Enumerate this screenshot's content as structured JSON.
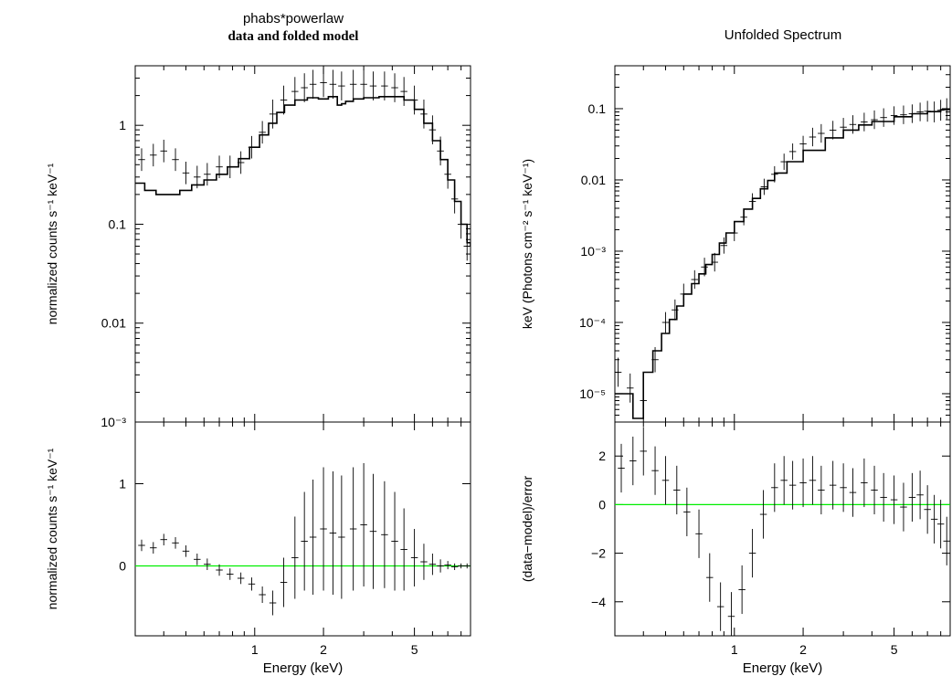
{
  "left_panel": {
    "title_line1": "phabs*powerlaw",
    "title_line2": "data and folded model"
  },
  "right_panel": {
    "title": "Unfolded Spectrum"
  },
  "colors": {
    "data": "#000000",
    "model": "#000000",
    "zero_line": "#00ee00",
    "frame": "#000000",
    "background": "#ffffff"
  },
  "chart_data": [
    {
      "id": "left-top",
      "type": "scatter",
      "title": "phabs*powerlaw",
      "subtitle": "data and folded model",
      "xlabel": "",
      "ylabel": "normalized counts s⁻¹ keV⁻¹",
      "xscale": "log",
      "yscale": "log",
      "xlim": [
        0.3,
        8.8
      ],
      "ylim": [
        0.001,
        4.0
      ],
      "xticks": [
        {
          "value": 1,
          "label": "1"
        },
        {
          "value": 2,
          "label": "2"
        },
        {
          "value": 5,
          "label": "5"
        }
      ],
      "yticks": [
        {
          "value": 0.001,
          "label": "10⁻³"
        },
        {
          "value": 0.01,
          "label": "0.01"
        },
        {
          "value": 0.1,
          "label": "0.1"
        },
        {
          "value": 1,
          "label": "1"
        }
      ],
      "series": [
        {
          "kind": "data_points",
          "x": [
            0.32,
            0.36,
            0.4,
            0.45,
            0.5,
            0.56,
            0.62,
            0.7,
            0.78,
            0.87,
            0.97,
            1.08,
            1.2,
            1.34,
            1.5,
            1.65,
            1.8,
            2.0,
            2.2,
            2.4,
            2.7,
            3.0,
            3.3,
            3.7,
            4.1,
            4.5,
            5.0,
            5.5,
            6.0,
            6.5,
            7.0,
            7.5,
            8.0,
            8.5
          ],
          "y": [
            0.45,
            0.5,
            0.55,
            0.45,
            0.33,
            0.3,
            0.32,
            0.38,
            0.38,
            0.42,
            0.6,
            0.85,
            1.3,
            1.8,
            2.2,
            2.4,
            2.6,
            2.7,
            2.6,
            2.5,
            2.6,
            2.6,
            2.5,
            2.5,
            2.4,
            2.2,
            1.8,
            1.3,
            0.9,
            0.55,
            0.32,
            0.18,
            0.1,
            0.06
          ],
          "yerr_factor": [
            1.3,
            1.3,
            1.3,
            1.3,
            1.3,
            1.3,
            1.3,
            1.3,
            1.3,
            1.3,
            1.3,
            1.3,
            1.4,
            1.4,
            1.4,
            1.4,
            1.4,
            1.4,
            1.4,
            1.4,
            1.4,
            1.4,
            1.4,
            1.4,
            1.4,
            1.4,
            1.4,
            1.4,
            1.4,
            1.4,
            1.4,
            1.4,
            1.4,
            1.4
          ]
        },
        {
          "kind": "model_step",
          "x": [
            0.3,
            0.33,
            0.37,
            0.42,
            0.47,
            0.53,
            0.6,
            0.68,
            0.76,
            0.85,
            0.95,
            1.05,
            1.15,
            1.25,
            1.35,
            1.5,
            1.7,
            1.9,
            2.1,
            2.3,
            2.4,
            2.5,
            2.7,
            3.0,
            3.5,
            4.0,
            4.5,
            5.0,
            5.5,
            6.0,
            6.5,
            7.0,
            7.5,
            8.0,
            8.5,
            8.8
          ],
          "y": [
            0.26,
            0.22,
            0.2,
            0.2,
            0.22,
            0.25,
            0.28,
            0.32,
            0.38,
            0.46,
            0.6,
            0.8,
            1.05,
            1.35,
            1.6,
            1.8,
            1.9,
            1.85,
            1.95,
            1.6,
            1.65,
            1.75,
            1.85,
            1.9,
            1.95,
            1.95,
            1.8,
            1.45,
            1.05,
            0.7,
            0.45,
            0.28,
            0.17,
            0.1,
            0.065,
            0.06
          ]
        }
      ]
    },
    {
      "id": "left-bottom",
      "type": "scatter",
      "xlabel": "Energy (keV)",
      "ylabel": "normalized counts s⁻¹ keV⁻¹",
      "xscale": "log",
      "yscale": "linear",
      "xlim": [
        0.3,
        8.8
      ],
      "ylim": [
        -0.85,
        1.75
      ],
      "xticks": [
        {
          "value": 1,
          "label": "1"
        },
        {
          "value": 2,
          "label": "2"
        },
        {
          "value": 5,
          "label": "5"
        }
      ],
      "yticks": [
        {
          "value": 0,
          "label": "0"
        },
        {
          "value": 1,
          "label": "1"
        }
      ],
      "zero_line": 0,
      "series": [
        {
          "kind": "residual_points",
          "x": [
            0.32,
            0.36,
            0.4,
            0.45,
            0.5,
            0.56,
            0.62,
            0.7,
            0.78,
            0.87,
            0.97,
            1.08,
            1.2,
            1.34,
            1.5,
            1.65,
            1.8,
            2.0,
            2.2,
            2.4,
            2.7,
            3.0,
            3.3,
            3.7,
            4.1,
            4.5,
            5.0,
            5.5,
            6.0,
            6.5,
            7.0,
            7.5,
            8.0,
            8.5
          ],
          "y": [
            0.25,
            0.22,
            0.32,
            0.28,
            0.18,
            0.08,
            0.02,
            -0.05,
            -0.1,
            -0.15,
            -0.22,
            -0.35,
            -0.45,
            -0.2,
            0.1,
            0.3,
            0.35,
            0.45,
            0.4,
            0.35,
            0.45,
            0.5,
            0.42,
            0.38,
            0.3,
            0.2,
            0.1,
            0.05,
            0.02,
            0.0,
            0.01,
            -0.01,
            0.0,
            0.0
          ],
          "yerr": [
            0.07,
            0.07,
            0.07,
            0.07,
            0.07,
            0.07,
            0.07,
            0.07,
            0.07,
            0.07,
            0.08,
            0.1,
            0.15,
            0.3,
            0.5,
            0.6,
            0.7,
            0.75,
            0.75,
            0.75,
            0.75,
            0.75,
            0.7,
            0.65,
            0.6,
            0.5,
            0.35,
            0.22,
            0.13,
            0.08,
            0.05,
            0.04,
            0.03,
            0.03
          ]
        }
      ]
    },
    {
      "id": "right-top",
      "type": "scatter",
      "title": "Unfolded Spectrum",
      "xlabel": "",
      "ylabel": "keV (Photons cm⁻² s⁻¹ keV⁻¹)",
      "xscale": "log",
      "yscale": "log",
      "xlim": [
        0.3,
        8.8
      ],
      "ylim": [
        4e-06,
        0.4
      ],
      "xticks": [
        {
          "value": 1,
          "label": "1"
        },
        {
          "value": 2,
          "label": "2"
        },
        {
          "value": 5,
          "label": "5"
        }
      ],
      "yticks": [
        {
          "value": 1e-05,
          "label": "10⁻⁵"
        },
        {
          "value": 0.0001,
          "label": "10⁻⁴"
        },
        {
          "value": 0.001,
          "label": "10⁻³"
        },
        {
          "value": 0.01,
          "label": "0.01"
        },
        {
          "value": 0.1,
          "label": "0.1"
        }
      ],
      "series": [
        {
          "kind": "data_points",
          "x": [
            0.31,
            0.35,
            0.4,
            0.45,
            0.5,
            0.55,
            0.6,
            0.67,
            0.74,
            0.82,
            0.9,
            1.0,
            1.1,
            1.2,
            1.35,
            1.5,
            1.65,
            1.8,
            2.0,
            2.2,
            2.4,
            2.7,
            3.0,
            3.3,
            3.7,
            4.1,
            4.5,
            5.0,
            5.5,
            6.0,
            6.5,
            7.0,
            7.5,
            8.0,
            8.5
          ],
          "y": [
            2e-05,
            1.2e-05,
            8e-06,
            3e-05,
            0.0001,
            0.00015,
            0.00025,
            0.0004,
            0.0006,
            0.0007,
            0.0012,
            0.0018,
            0.003,
            0.005,
            0.008,
            0.012,
            0.018,
            0.025,
            0.032,
            0.04,
            0.045,
            0.05,
            0.055,
            0.06,
            0.065,
            0.07,
            0.075,
            0.08,
            0.082,
            0.085,
            0.09,
            0.092,
            0.09,
            0.095,
            0.1
          ],
          "yerr_factor": [
            1.6,
            1.6,
            1.6,
            1.5,
            1.4,
            1.4,
            1.4,
            1.35,
            1.35,
            1.35,
            1.3,
            1.3,
            1.3,
            1.3,
            1.3,
            1.3,
            1.3,
            1.3,
            1.3,
            1.35,
            1.35,
            1.35,
            1.35,
            1.35,
            1.35,
            1.35,
            1.35,
            1.35,
            1.35,
            1.35,
            1.35,
            1.4,
            1.4,
            1.4,
            1.4
          ]
        },
        {
          "kind": "model_step",
          "x": [
            0.3,
            0.32,
            0.36,
            0.4,
            0.44,
            0.48,
            0.52,
            0.56,
            0.6,
            0.65,
            0.7,
            0.75,
            0.8,
            0.86,
            0.92,
            1.0,
            1.1,
            1.2,
            1.3,
            1.4,
            1.5,
            1.7,
            2.0,
            2.5,
            3.0,
            3.5,
            4.0,
            5.0,
            6.0,
            7.0,
            8.0,
            8.8
          ],
          "y": [
            1e-05,
            1e-05,
            4.5e-06,
            2e-05,
            4e-05,
            7e-05,
            0.00011,
            0.00017,
            0.00025,
            0.00035,
            0.00048,
            0.00065,
            0.0009,
            0.0013,
            0.0018,
            0.0026,
            0.0039,
            0.0055,
            0.0075,
            0.0098,
            0.0125,
            0.018,
            0.026,
            0.039,
            0.05,
            0.059,
            0.066,
            0.077,
            0.085,
            0.091,
            0.097,
            0.1
          ]
        }
      ]
    },
    {
      "id": "right-bottom",
      "type": "scatter",
      "xlabel": "Energy (keV)",
      "ylabel": "(data−model)/error",
      "xscale": "log",
      "yscale": "linear",
      "xlim": [
        0.3,
        8.8
      ],
      "ylim": [
        -5.4,
        3.4
      ],
      "xticks": [
        {
          "value": 1,
          "label": "1"
        },
        {
          "value": 2,
          "label": "2"
        },
        {
          "value": 5,
          "label": "5"
        }
      ],
      "yticks": [
        {
          "value": -4,
          "label": "−4"
        },
        {
          "value": -2,
          "label": "−2"
        },
        {
          "value": 0,
          "label": "0"
        },
        {
          "value": 2,
          "label": "2"
        }
      ],
      "zero_line": 0,
      "series": [
        {
          "kind": "residual_points",
          "x": [
            0.32,
            0.36,
            0.4,
            0.45,
            0.5,
            0.56,
            0.62,
            0.7,
            0.78,
            0.87,
            0.97,
            1.08,
            1.2,
            1.34,
            1.5,
            1.65,
            1.8,
            2.0,
            2.2,
            2.4,
            2.7,
            3.0,
            3.3,
            3.7,
            4.1,
            4.5,
            5.0,
            5.5,
            6.0,
            6.5,
            7.0,
            7.5,
            8.0,
            8.5
          ],
          "y": [
            1.5,
            1.8,
            2.2,
            1.4,
            1.0,
            0.6,
            -0.3,
            -1.2,
            -3.0,
            -4.2,
            -4.6,
            -3.5,
            -2.0,
            -0.4,
            0.7,
            1.0,
            0.8,
            0.9,
            1.0,
            0.6,
            0.8,
            0.7,
            0.5,
            0.9,
            0.6,
            0.3,
            0.2,
            -0.1,
            0.3,
            0.4,
            -0.2,
            -0.6,
            -0.8,
            -1.5
          ],
          "yerr": [
            1,
            1,
            1,
            1,
            1,
            1,
            1,
            1,
            1,
            1,
            1,
            1,
            1,
            1,
            1,
            1,
            1,
            1,
            1,
            1,
            1,
            1,
            1,
            1,
            1,
            1,
            1,
            1,
            1,
            1,
            1,
            1,
            1,
            1
          ]
        }
      ]
    }
  ]
}
